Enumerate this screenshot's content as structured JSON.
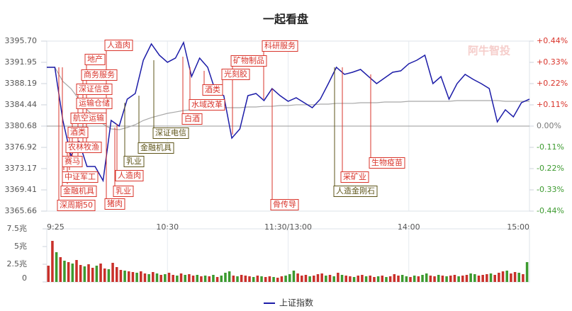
{
  "watermark": "阿牛智投",
  "chart_data": [
    {
      "type": "line",
      "title": "一起看盘",
      "x": [
        0,
        4,
        8,
        12,
        16,
        20,
        24,
        28,
        32,
        36,
        40,
        44,
        48,
        52,
        56,
        60,
        64,
        68,
        72,
        76,
        80,
        84,
        88,
        92,
        96,
        100,
        104,
        108,
        112,
        116,
        120,
        124,
        128,
        132,
        136,
        140,
        144,
        148,
        152,
        156,
        160,
        164,
        168,
        172,
        176,
        180,
        184,
        188,
        192,
        196,
        200,
        204,
        208,
        212,
        216,
        220,
        224,
        228,
        232,
        236,
        240
      ],
      "series": [
        {
          "name": "上证指数",
          "color": "#1c1ca8",
          "values": [
            3391.07,
            3391.07,
            3381.68,
            3375.42,
            3377.93,
            3373.55,
            3373.55,
            3371.04,
            3381.68,
            3380.68,
            3385.44,
            3386.44,
            3392.32,
            3395.2,
            3393.2,
            3391.95,
            3392.7,
            3395.45,
            3389.44,
            3392.7,
            3391.07,
            3386.69,
            3386.06,
            3378.55,
            3380.18,
            3386.06,
            3386.44,
            3385.19,
            3387.31,
            3386.06,
            3385.06,
            3385.69,
            3384.81,
            3383.93,
            3385.44,
            3388.19,
            3391.07,
            3389.82,
            3390.19,
            3390.69,
            3389.44,
            3388.19,
            3389.19,
            3390.19,
            3390.44,
            3391.7,
            3392.32,
            3393.2,
            3388.19,
            3389.44,
            3385.44,
            3388.19,
            3389.82,
            3388.94,
            3388.19,
            3387.31,
            3381.43,
            3383.56,
            3382.31,
            3384.81,
            3385.44
          ]
        },
        {
          "color": "#a8a8a8",
          "values": [
            3391.07,
            3391.07,
            3388.57,
            3387.31,
            3385.44,
            3383.56,
            3382.31,
            3381.06,
            3380.18,
            3380.05,
            3380.43,
            3380.93,
            3381.68,
            3382.18,
            3382.56,
            3382.93,
            3383.18,
            3383.43,
            3383.56,
            3383.68,
            3383.81,
            3383.93,
            3383.93,
            3383.93,
            3383.93,
            3384.06,
            3384.06,
            3384.18,
            3384.18,
            3384.31,
            3384.31,
            3384.44,
            3384.44,
            3384.44,
            3384.56,
            3384.56,
            3384.69,
            3384.69,
            3384.69,
            3384.81,
            3384.81,
            3384.81,
            3384.94,
            3384.94,
            3384.94,
            3385.06,
            3385.06,
            3385.06,
            3385.06,
            3385.06,
            3385.06,
            3385.19,
            3385.19,
            3385.19,
            3385.19,
            3385.19,
            3385.19,
            3385.06,
            3385.06,
            3385.06,
            3385.06
          ]
        }
      ],
      "xlim": [
        0,
        240
      ],
      "xticks": [
        {
          "value": 0,
          "label": "9:25"
        },
        {
          "value": 60,
          "label": "10:30"
        },
        {
          "value": 120,
          "label": "11:30/13:00"
        },
        {
          "value": 180,
          "label": "14:00"
        },
        {
          "value": 240,
          "label": "15:00"
        }
      ],
      "ylim": [
        3365.66,
        3395.7
      ],
      "yticks": [
        {
          "value": 3395.7,
          "label": "3395.70"
        },
        3391.95,
        3388.19,
        3384.44,
        3380.68,
        3376.92,
        3373.17,
        3369.41,
        3365.66
      ],
      "y2lim": [
        -0.44,
        0.44
      ],
      "y2ticks": [
        {
          "value": 0.44,
          "label": "+0.44%"
        },
        {
          "value": 0.33,
          "label": "+0.33%"
        },
        {
          "value": 0.22,
          "label": "+0.22%"
        },
        {
          "value": 0.11,
          "label": "+0.11%"
        },
        {
          "value": 0,
          "label": "0.00%"
        },
        {
          "value": -0.11,
          "label": "-0.11%"
        },
        {
          "value": -0.22,
          "label": "-0.22%"
        },
        {
          "value": -0.33,
          "label": "-0.33%"
        },
        {
          "value": -0.44,
          "label": "-0.44%"
        }
      ],
      "prev_close": 3380.68,
      "legend": "bottom",
      "annotations": [
        {
          "text": "人造肉",
          "color": "#d9342b"
        },
        {
          "text": "地产",
          "color": "#d9342b"
        },
        {
          "text": "商务服务",
          "color": "#d9342b"
        },
        {
          "text": "深证信息",
          "color": "#d9342b"
        },
        {
          "text": "运输仓储",
          "color": "#d9342b"
        },
        {
          "text": "航空运输",
          "color": "#d9342b"
        },
        {
          "text": "酒类",
          "color": "#d9342b"
        },
        {
          "text": "农林牧渔",
          "color": "#d9342b"
        },
        {
          "text": "赛马",
          "color": "#d9342b"
        },
        {
          "text": "中证军工",
          "color": "#d9342b"
        },
        {
          "text": "金融机具",
          "color": "#d9342b"
        },
        {
          "text": "深周期50",
          "color": "#d9342b"
        },
        {
          "text": "猪肉",
          "color": "#d9342b"
        },
        {
          "text": "乳业",
          "color": "#d9342b"
        },
        {
          "text": "人造肉",
          "color": "#d9342b"
        },
        {
          "text": "白酒",
          "color": "#d9342b"
        },
        {
          "text": "水域改革",
          "color": "#d9342b"
        },
        {
          "text": "酒类",
          "color": "#d9342b"
        },
        {
          "text": "光刻胶",
          "color": "#d9342b"
        },
        {
          "text": "矿物制品",
          "color": "#d9342b"
        },
        {
          "text": "科研服务",
          "color": "#d9342b"
        },
        {
          "text": "骨传导",
          "color": "#d9342b"
        },
        {
          "text": "生物疫苗",
          "color": "#d9342b"
        },
        {
          "text": "采矿业",
          "color": "#d9342b"
        },
        {
          "text": "乳业",
          "color": "#5e5418"
        },
        {
          "text": "金融机具",
          "color": "#5e5418"
        },
        {
          "text": "深证电信",
          "color": "#5e5418"
        },
        {
          "text": "人造金刚石",
          "color": "#5e5418"
        }
      ]
    },
    {
      "type": "bar",
      "x": [
        0,
        2,
        4,
        6,
        8,
        10,
        12,
        14,
        16,
        18,
        20,
        22,
        24,
        26,
        28,
        30,
        32,
        34,
        36,
        38,
        40,
        42,
        44,
        46,
        48,
        50,
        52,
        54,
        56,
        58,
        60,
        62,
        64,
        66,
        68,
        70,
        72,
        74,
        76,
        78,
        80,
        82,
        84,
        86,
        88,
        90,
        92,
        94,
        96,
        98,
        100,
        102,
        104,
        106,
        108,
        110,
        112,
        114,
        116,
        118,
        120,
        122,
        124,
        126,
        128,
        130,
        132,
        134,
        136,
        138,
        140,
        142,
        144,
        146,
        148,
        150,
        152,
        154,
        156,
        158,
        160,
        162,
        164,
        166,
        168,
        170,
        172,
        174,
        176,
        178,
        180,
        182,
        184,
        186,
        188,
        190,
        192,
        194,
        196,
        198,
        200,
        202,
        204,
        206,
        208,
        210,
        212,
        214,
        216,
        218,
        220,
        222,
        224,
        226,
        228,
        230,
        232,
        234,
        236,
        238
      ],
      "xlim": [
        0,
        240
      ],
      "ylim": [
        0,
        7.5
      ],
      "yticks": [
        {
          "value": 7.5,
          "label": "7.5兆"
        },
        {
          "value": 5,
          "label": "5兆"
        },
        {
          "value": 2.5,
          "label": "2.5兆"
        },
        0
      ],
      "series": [
        {
          "color": "#c9302a",
          "values": [
            2.3,
            5.8,
            null,
            3.5,
            null,
            2.8,
            null,
            3.1,
            2.4,
            null,
            2.5,
            2.0,
            null,
            2.6,
            1.9,
            null,
            2.7,
            2.1,
            1.7,
            null,
            1.5,
            1.4,
            null,
            1.5,
            1.2,
            null,
            1.4,
            null,
            1.0,
            null,
            1.3,
            1.0,
            null,
            1.2,
            null,
            1.1,
            0.9,
            null,
            0.8,
            null,
            0.8,
            null,
            0.7,
            null,
            null,
            null,
            0.9,
            null,
            1.0,
            0.9,
            0.8,
            null,
            0.9,
            null,
            0.7,
            0.8,
            null,
            0.6,
            0.8,
            null,
            null,
            null,
            1.2,
            0.9,
            1.0,
            null,
            0.9,
            1.1,
            1.2,
            null,
            1.0,
            null,
            1.3,
            null,
            0.9,
            0.8,
            null,
            0.9,
            1.0,
            null,
            0.9,
            0.7,
            null,
            0.9,
            null,
            0.8,
            1.1,
            0.9,
            null,
            null,
            0.7,
            null,
            0.8,
            null,
            null,
            0.9,
            0.8,
            null,
            0.9,
            null,
            0.9,
            1.0,
            null,
            0.9,
            1.0,
            null,
            null,
            0.9,
            1.0,
            1.1,
            null,
            1.0,
            1.3,
            1.5,
            null,
            1.2,
            1.4,
            null,
            1.1,
            null
          ]
        },
        {
          "color": "#3c9a2f",
          "values": [
            null,
            null,
            4.2,
            null,
            3.0,
            null,
            2.6,
            null,
            null,
            2.2,
            null,
            null,
            2.3,
            null,
            null,
            1.8,
            null,
            null,
            null,
            1.6,
            null,
            null,
            1.3,
            null,
            null,
            1.1,
            null,
            1.2,
            null,
            1.1,
            null,
            null,
            0.9,
            null,
            1.0,
            null,
            null,
            1.0,
            null,
            0.9,
            null,
            1.0,
            null,
            0.9,
            1.3,
            1.5,
            null,
            0.8,
            null,
            null,
            null,
            0.7,
            null,
            0.8,
            null,
            null,
            0.7,
            null,
            null,
            0.9,
            1.1,
            1.6,
            null,
            null,
            null,
            0.8,
            null,
            null,
            null,
            0.9,
            null,
            0.8,
            null,
            1.0,
            null,
            null,
            0.7,
            null,
            null,
            0.8,
            null,
            null,
            0.8,
            null,
            0.7,
            null,
            null,
            null,
            1.0,
            0.8,
            null,
            0.9,
            null,
            1.0,
            1.2,
            null,
            null,
            1.0,
            null,
            0.8,
            null,
            null,
            0.8,
            null,
            null,
            1.2,
            1.1,
            null,
            null,
            null,
            1.2,
            null,
            null,
            null,
            1.6,
            null,
            null,
            1.3,
            null,
            2.8
          ]
        }
      ]
    }
  ]
}
